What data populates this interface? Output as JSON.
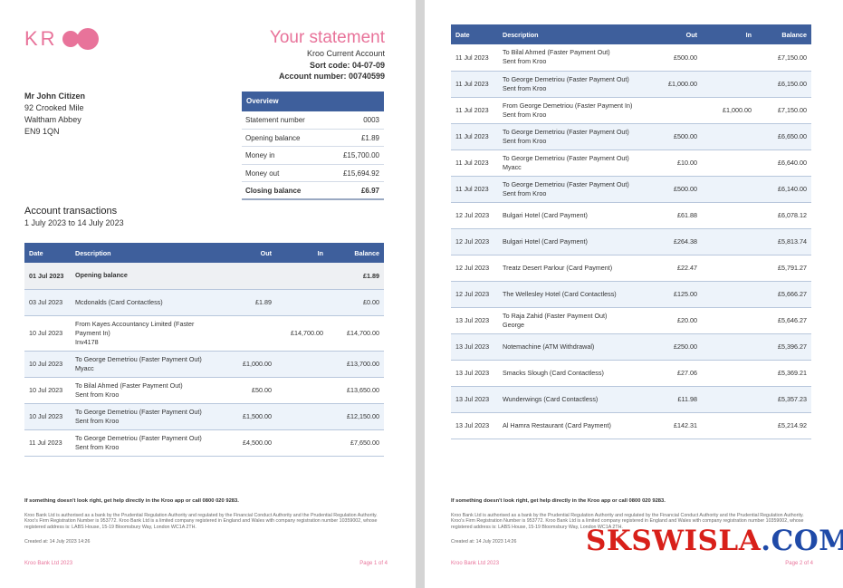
{
  "logo": "KR",
  "pages": [
    {
      "title": "Your statement",
      "account_type": "Kroo Current Account",
      "sort_code": "Sort code: 04-07-09",
      "account_number": "Account number: 00740599",
      "address": [
        "Mr John Citizen",
        "92 Crooked Mile",
        "Waltham Abbey",
        "EN9 1QN"
      ],
      "overview": {
        "title": "Overview",
        "rows": [
          [
            "Statement number",
            "0003"
          ],
          [
            "Opening balance",
            "£1.89"
          ],
          [
            "Money in",
            "£15,700.00"
          ],
          [
            "Money out",
            "£15,694.92"
          ],
          [
            "Closing balance",
            "£6.97"
          ]
        ]
      },
      "section_title": "Account transactions",
      "period": "1 July 2023 to 14 July 2023",
      "table": {
        "headers": [
          "Date",
          "Description",
          "Out",
          "In",
          "Balance"
        ],
        "rows": [
          {
            "date": "01 Jul 2023",
            "description": [
              "Opening balance"
            ],
            "balance": "£1.89"
          },
          {
            "date": "03 Jul 2023",
            "description": [
              "Mcdonalds (Card Contactless)"
            ],
            "out": "£1.89",
            "balance": "£0.00"
          },
          {
            "date": "10 Jul 2023",
            "description": [
              "From Kayes Accountancy Limited (Faster",
              "Payment In)",
              "Inv4178"
            ],
            "in": "£14,700.00",
            "balance": "£14,700.00"
          },
          {
            "date": "10 Jul 2023",
            "description": [
              "To George Demetriou (Faster Payment Out)",
              "Myacc"
            ],
            "out": "£1,000.00",
            "balance": "£13,700.00"
          },
          {
            "date": "10 Jul 2023",
            "description": [
              "To Bilal Ahmed (Faster Payment Out)",
              "Sent from Kroo"
            ],
            "out": "£50.00",
            "balance": "£13,650.00"
          },
          {
            "date": "10 Jul 2023",
            "description": [
              "To George Demetriou (Faster Payment Out)",
              "Sent from Kroo"
            ],
            "out": "£1,500.00",
            "balance": "£12,150.00"
          },
          {
            "date": "11 Jul 2023",
            "description": [
              "To George Demetriou (Faster Payment Out)",
              "Sent from Kroo"
            ],
            "out": "£4,500.00",
            "balance": "£7,650.00"
          }
        ]
      },
      "footer": {
        "help": "If something doesn't look right, get help directly in the Kroo app or call 0800 020 9283.",
        "legal": "Kroo Bank Ltd is authorised as a bank by the Prudential Regulation Authority and regulated by the Financial Conduct Authority and the Prudential Regulation Authority. Kroo's Firm Registration Number is 953772. Kroo Bank Ltd is a limited company registered in England and Wales with company registration number 10359002, whose registered address is: LABS House, 15-19 Bloomsbury Way, London WC1A 2TH.",
        "created": "Created at: 14 July 2023 14:26",
        "company": "Kroo Bank Ltd 2023",
        "page": "Page 1 of 4"
      }
    },
    {
      "table": {
        "headers": [
          "Date",
          "Description",
          "Out",
          "In",
          "Balance"
        ],
        "rows": [
          {
            "date": "11 Jul 2023",
            "description": [
              "To Bilal Ahmed (Faster Payment Out)",
              "Sent from Kroo"
            ],
            "out": "£500.00",
            "balance": "£7,150.00"
          },
          {
            "date": "11 Jul 2023",
            "description": [
              "To George Demetriou (Faster Payment Out)",
              "Sent from Kroo"
            ],
            "out": "£1,000.00",
            "balance": "£6,150.00"
          },
          {
            "date": "11 Jul 2023",
            "description": [
              "From George Demetriou (Faster Payment In)",
              "Sent from Kroo"
            ],
            "in": "£1,000.00",
            "balance": "£7,150.00"
          },
          {
            "date": "11 Jul 2023",
            "description": [
              "To George Demetriou (Faster Payment Out)",
              "Sent from Kroo"
            ],
            "out": "£500.00",
            "balance": "£6,650.00"
          },
          {
            "date": "11 Jul 2023",
            "description": [
              "To George Demetriou (Faster Payment Out)",
              "Myacc"
            ],
            "out": "£10.00",
            "balance": "£6,640.00"
          },
          {
            "date": "11 Jul 2023",
            "description": [
              "To George Demetriou (Faster Payment Out)",
              "Sent from Kroo"
            ],
            "out": "£500.00",
            "balance": "£6,140.00"
          },
          {
            "date": "12 Jul 2023",
            "description": [
              "Bulgari Hotel (Card Payment)"
            ],
            "out": "£61.88",
            "balance": "£6,078.12"
          },
          {
            "date": "12 Jul 2023",
            "description": [
              "Bulgari Hotel (Card Payment)"
            ],
            "out": "£264.38",
            "balance": "£5,813.74"
          },
          {
            "date": "12 Jul 2023",
            "description": [
              "Treatz Desert Parlour (Card Payment)"
            ],
            "out": "£22.47",
            "balance": "£5,791.27"
          },
          {
            "date": "12 Jul 2023",
            "description": [
              "The Wellesley Hotel (Card Contactless)"
            ],
            "out": "£125.00",
            "balance": "£5,666.27"
          },
          {
            "date": "13 Jul 2023",
            "description": [
              "To Raja Zahid (Faster Payment Out)",
              "George"
            ],
            "out": "£20.00",
            "balance": "£5,646.27"
          },
          {
            "date": "13 Jul 2023",
            "description": [
              "Notemachine (ATM Withdrawal)"
            ],
            "out": "£250.00",
            "balance": "£5,396.27"
          },
          {
            "date": "13 Jul 2023",
            "description": [
              "Smacks Slough (Card Contactless)"
            ],
            "out": "£27.06",
            "balance": "£5,369.21"
          },
          {
            "date": "13 Jul 2023",
            "description": [
              "Wunderwings (Card Contactless)"
            ],
            "out": "£11.98",
            "balance": "£5,357.23"
          },
          {
            "date": "13 Jul 2023",
            "description": [
              "Al Hamra Restaurant (Card Payment)"
            ],
            "out": "£142.31",
            "balance": "£5,214.92"
          }
        ]
      },
      "footer": {
        "help": "If something doesn't look right, get help directly in the Kroo app or call 0800 020 9283.",
        "legal": "Kroo Bank Ltd is authorised as a bank by the Prudential Regulation Authority and regulated by the Financial Conduct Authority and the Prudential Regulation Authority. Kroo's Firm Registration Number is 953772. Kroo Bank Ltd is a limited company registered in England and Wales with company registration number 10359002, whose registered address is: LABS House, 15-19 Bloomsbury Way, London WC1A 2TH.",
        "created": "Created at: 14 July 2023 14:26",
        "company": "Kroo Bank Ltd 2023",
        "page": "Page 2 of 4"
      }
    }
  ],
  "watermark": [
    "SKSWISLA",
    ".COM"
  ]
}
